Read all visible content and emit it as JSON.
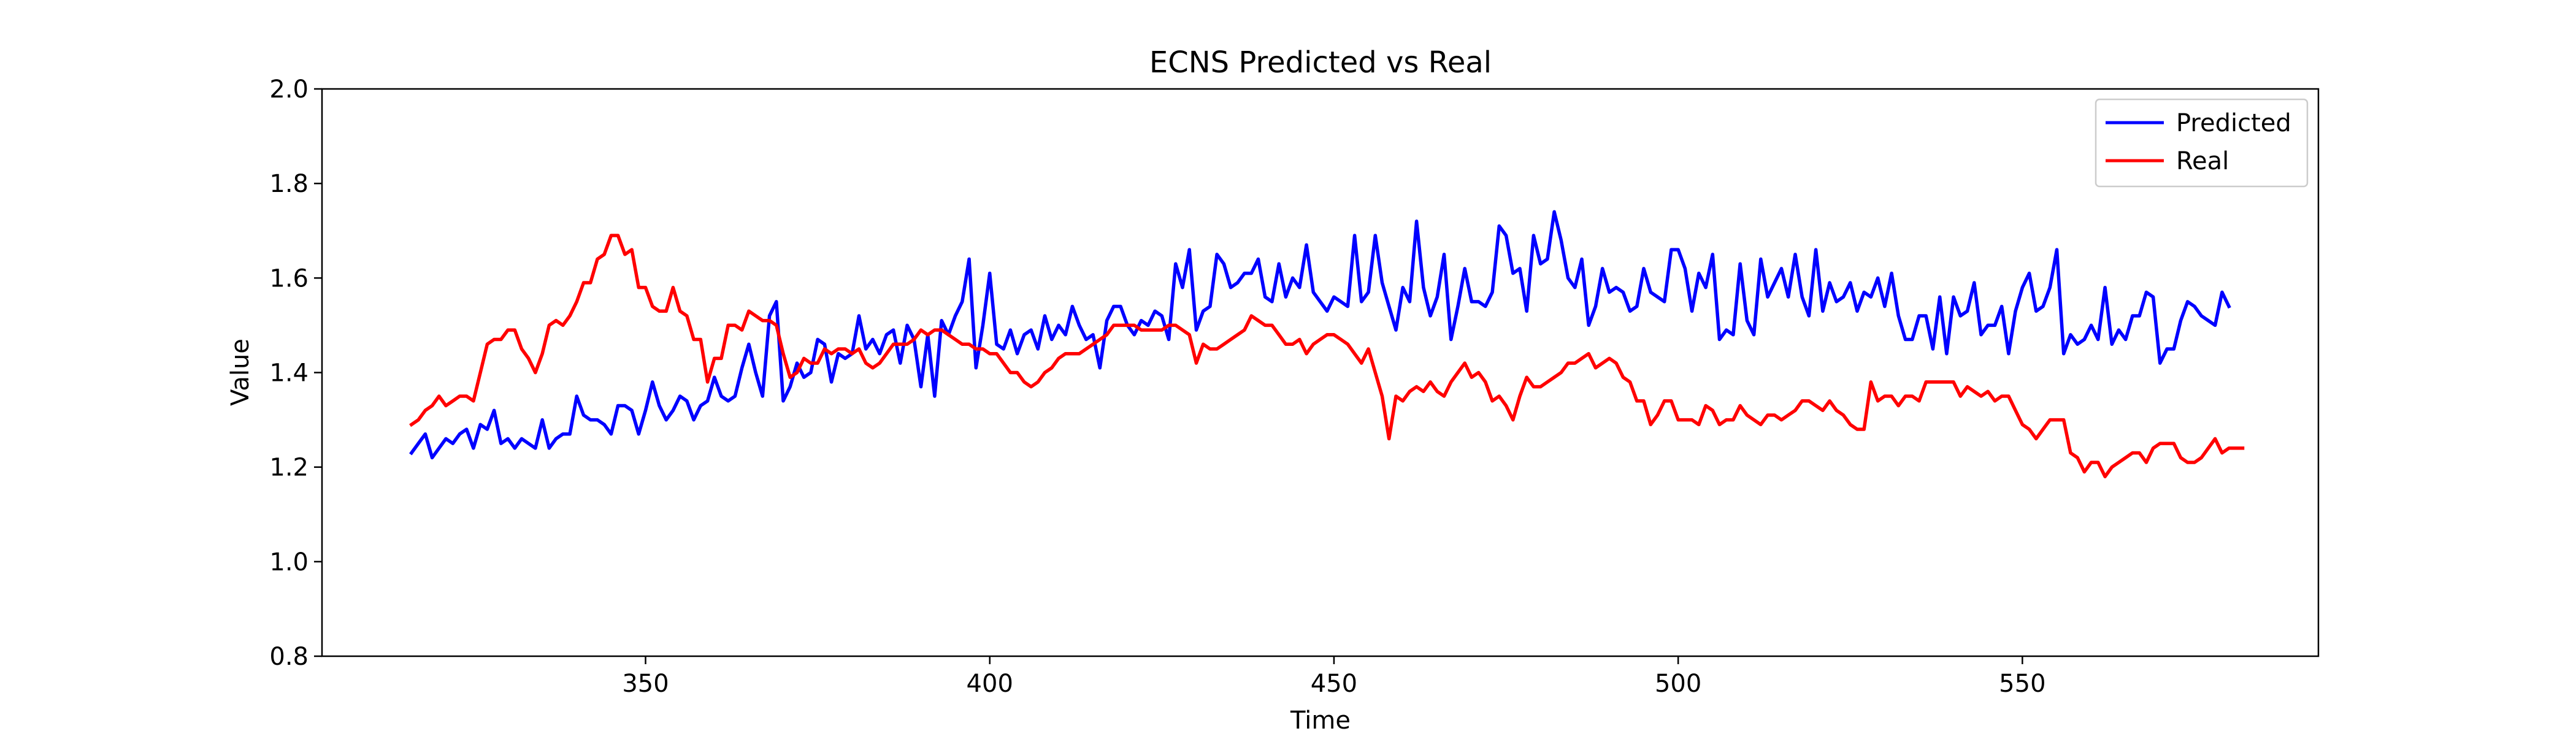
{
  "chart_data": {
    "type": "line",
    "title": "ECNS Predicted vs Real",
    "xlabel": "Time",
    "ylabel": "Value",
    "xlim": [
      303,
      593
    ],
    "ylim": [
      0.8,
      2.0
    ],
    "xticks": [
      350,
      400,
      450,
      500,
      550
    ],
    "yticks": [
      0.8,
      1.0,
      1.2,
      1.4,
      1.6,
      1.8,
      2.0
    ],
    "grid": false,
    "legend_position": "top-right",
    "x_start": 316,
    "x_step": 1,
    "series": [
      {
        "name": "Predicted",
        "color": "#0000ff",
        "values": [
          1.23,
          1.25,
          1.27,
          1.22,
          1.24,
          1.26,
          1.25,
          1.27,
          1.28,
          1.24,
          1.29,
          1.28,
          1.32,
          1.25,
          1.26,
          1.24,
          1.26,
          1.25,
          1.24,
          1.3,
          1.24,
          1.26,
          1.27,
          1.27,
          1.35,
          1.31,
          1.3,
          1.3,
          1.29,
          1.27,
          1.33,
          1.33,
          1.32,
          1.27,
          1.32,
          1.38,
          1.33,
          1.3,
          1.32,
          1.35,
          1.34,
          1.3,
          1.33,
          1.34,
          1.39,
          1.35,
          1.34,
          1.35,
          1.41,
          1.46,
          1.4,
          1.35,
          1.52,
          1.55,
          1.34,
          1.37,
          1.42,
          1.39,
          1.4,
          1.47,
          1.46,
          1.38,
          1.44,
          1.43,
          1.44,
          1.52,
          1.45,
          1.47,
          1.44,
          1.48,
          1.49,
          1.42,
          1.5,
          1.47,
          1.37,
          1.48,
          1.35,
          1.51,
          1.48,
          1.52,
          1.55,
          1.64,
          1.41,
          1.5,
          1.61,
          1.46,
          1.45,
          1.49,
          1.44,
          1.48,
          1.49,
          1.45,
          1.52,
          1.47,
          1.5,
          1.48,
          1.54,
          1.5,
          1.47,
          1.48,
          1.41,
          1.51,
          1.54,
          1.54,
          1.5,
          1.48,
          1.51,
          1.5,
          1.53,
          1.52,
          1.47,
          1.63,
          1.58,
          1.66,
          1.49,
          1.53,
          1.54,
          1.65,
          1.63,
          1.58,
          1.59,
          1.61,
          1.61,
          1.64,
          1.56,
          1.55,
          1.63,
          1.56,
          1.6,
          1.58,
          1.67,
          1.57,
          1.55,
          1.53,
          1.56,
          1.55,
          1.54,
          1.69,
          1.55,
          1.57,
          1.69,
          1.59,
          1.54,
          1.49,
          1.58,
          1.55,
          1.72,
          1.58,
          1.52,
          1.56,
          1.65,
          1.47,
          1.54,
          1.62,
          1.55,
          1.55,
          1.54,
          1.57,
          1.71,
          1.69,
          1.61,
          1.62,
          1.53,
          1.69,
          1.63,
          1.64,
          1.74,
          1.68,
          1.6,
          1.58,
          1.64,
          1.5,
          1.54,
          1.62,
          1.57,
          1.58,
          1.57,
          1.53,
          1.54,
          1.62,
          1.57,
          1.56,
          1.55,
          1.66,
          1.66,
          1.62,
          1.53,
          1.61,
          1.58,
          1.65,
          1.47,
          1.49,
          1.48,
          1.63,
          1.51,
          1.48,
          1.64,
          1.56,
          1.59,
          1.62,
          1.56,
          1.65,
          1.56,
          1.52,
          1.66,
          1.53,
          1.59,
          1.55,
          1.56,
          1.59,
          1.53,
          1.57,
          1.56,
          1.6,
          1.54,
          1.61,
          1.52,
          1.47,
          1.47,
          1.52,
          1.52,
          1.45,
          1.56,
          1.44,
          1.56,
          1.52,
          1.53,
          1.59,
          1.48,
          1.5,
          1.5,
          1.54,
          1.44,
          1.53,
          1.58,
          1.61,
          1.53,
          1.54,
          1.58,
          1.66,
          1.44,
          1.48,
          1.46,
          1.47,
          1.5,
          1.47,
          1.58,
          1.46,
          1.49,
          1.47,
          1.52,
          1.52,
          1.57,
          1.56,
          1.42,
          1.45,
          1.45,
          1.51,
          1.55,
          1.54,
          1.52,
          1.51,
          1.5,
          1.57,
          1.54
        ]
      },
      {
        "name": "Real",
        "color": "#ff0000",
        "values": [
          1.29,
          1.3,
          1.32,
          1.33,
          1.35,
          1.33,
          1.34,
          1.35,
          1.35,
          1.34,
          1.4,
          1.46,
          1.47,
          1.47,
          1.49,
          1.49,
          1.45,
          1.43,
          1.4,
          1.44,
          1.5,
          1.51,
          1.5,
          1.52,
          1.55,
          1.59,
          1.59,
          1.64,
          1.65,
          1.69,
          1.69,
          1.65,
          1.66,
          1.58,
          1.58,
          1.54,
          1.53,
          1.53,
          1.58,
          1.53,
          1.52,
          1.47,
          1.47,
          1.38,
          1.43,
          1.43,
          1.5,
          1.5,
          1.49,
          1.53,
          1.52,
          1.51,
          1.51,
          1.5,
          1.44,
          1.39,
          1.4,
          1.43,
          1.42,
          1.42,
          1.45,
          1.44,
          1.45,
          1.45,
          1.44,
          1.45,
          1.42,
          1.41,
          1.42,
          1.44,
          1.46,
          1.46,
          1.46,
          1.47,
          1.49,
          1.48,
          1.49,
          1.49,
          1.48,
          1.47,
          1.46,
          1.46,
          1.45,
          1.45,
          1.44,
          1.44,
          1.42,
          1.4,
          1.4,
          1.38,
          1.37,
          1.38,
          1.4,
          1.41,
          1.43,
          1.44,
          1.44,
          1.44,
          1.45,
          1.46,
          1.47,
          1.48,
          1.5,
          1.5,
          1.5,
          1.5,
          1.49,
          1.49,
          1.49,
          1.49,
          1.5,
          1.5,
          1.49,
          1.48,
          1.42,
          1.46,
          1.45,
          1.45,
          1.46,
          1.47,
          1.48,
          1.49,
          1.52,
          1.51,
          1.5,
          1.5,
          1.48,
          1.46,
          1.46,
          1.47,
          1.44,
          1.46,
          1.47,
          1.48,
          1.48,
          1.47,
          1.46,
          1.44,
          1.42,
          1.45,
          1.4,
          1.35,
          1.26,
          1.35,
          1.34,
          1.36,
          1.37,
          1.36,
          1.38,
          1.36,
          1.35,
          1.38,
          1.4,
          1.42,
          1.39,
          1.4,
          1.38,
          1.34,
          1.35,
          1.33,
          1.3,
          1.35,
          1.39,
          1.37,
          1.37,
          1.38,
          1.39,
          1.4,
          1.42,
          1.42,
          1.43,
          1.44,
          1.41,
          1.42,
          1.43,
          1.42,
          1.39,
          1.38,
          1.34,
          1.34,
          1.29,
          1.31,
          1.34,
          1.34,
          1.3,
          1.3,
          1.3,
          1.29,
          1.33,
          1.32,
          1.29,
          1.3,
          1.3,
          1.33,
          1.31,
          1.3,
          1.29,
          1.31,
          1.31,
          1.3,
          1.31,
          1.32,
          1.34,
          1.34,
          1.33,
          1.32,
          1.34,
          1.32,
          1.31,
          1.29,
          1.28,
          1.28,
          1.38,
          1.34,
          1.35,
          1.35,
          1.33,
          1.35,
          1.35,
          1.34,
          1.38,
          1.38,
          1.38,
          1.38,
          1.38,
          1.35,
          1.37,
          1.36,
          1.35,
          1.36,
          1.34,
          1.35,
          1.35,
          1.32,
          1.29,
          1.28,
          1.26,
          1.28,
          1.3,
          1.3,
          1.3,
          1.23,
          1.22,
          1.19,
          1.21,
          1.21,
          1.18,
          1.2,
          1.21,
          1.22,
          1.23,
          1.23,
          1.21,
          1.24,
          1.25,
          1.25,
          1.25,
          1.22,
          1.21,
          1.21,
          1.22,
          1.24,
          1.26,
          1.23,
          1.24,
          1.24,
          1.24
        ]
      }
    ]
  }
}
